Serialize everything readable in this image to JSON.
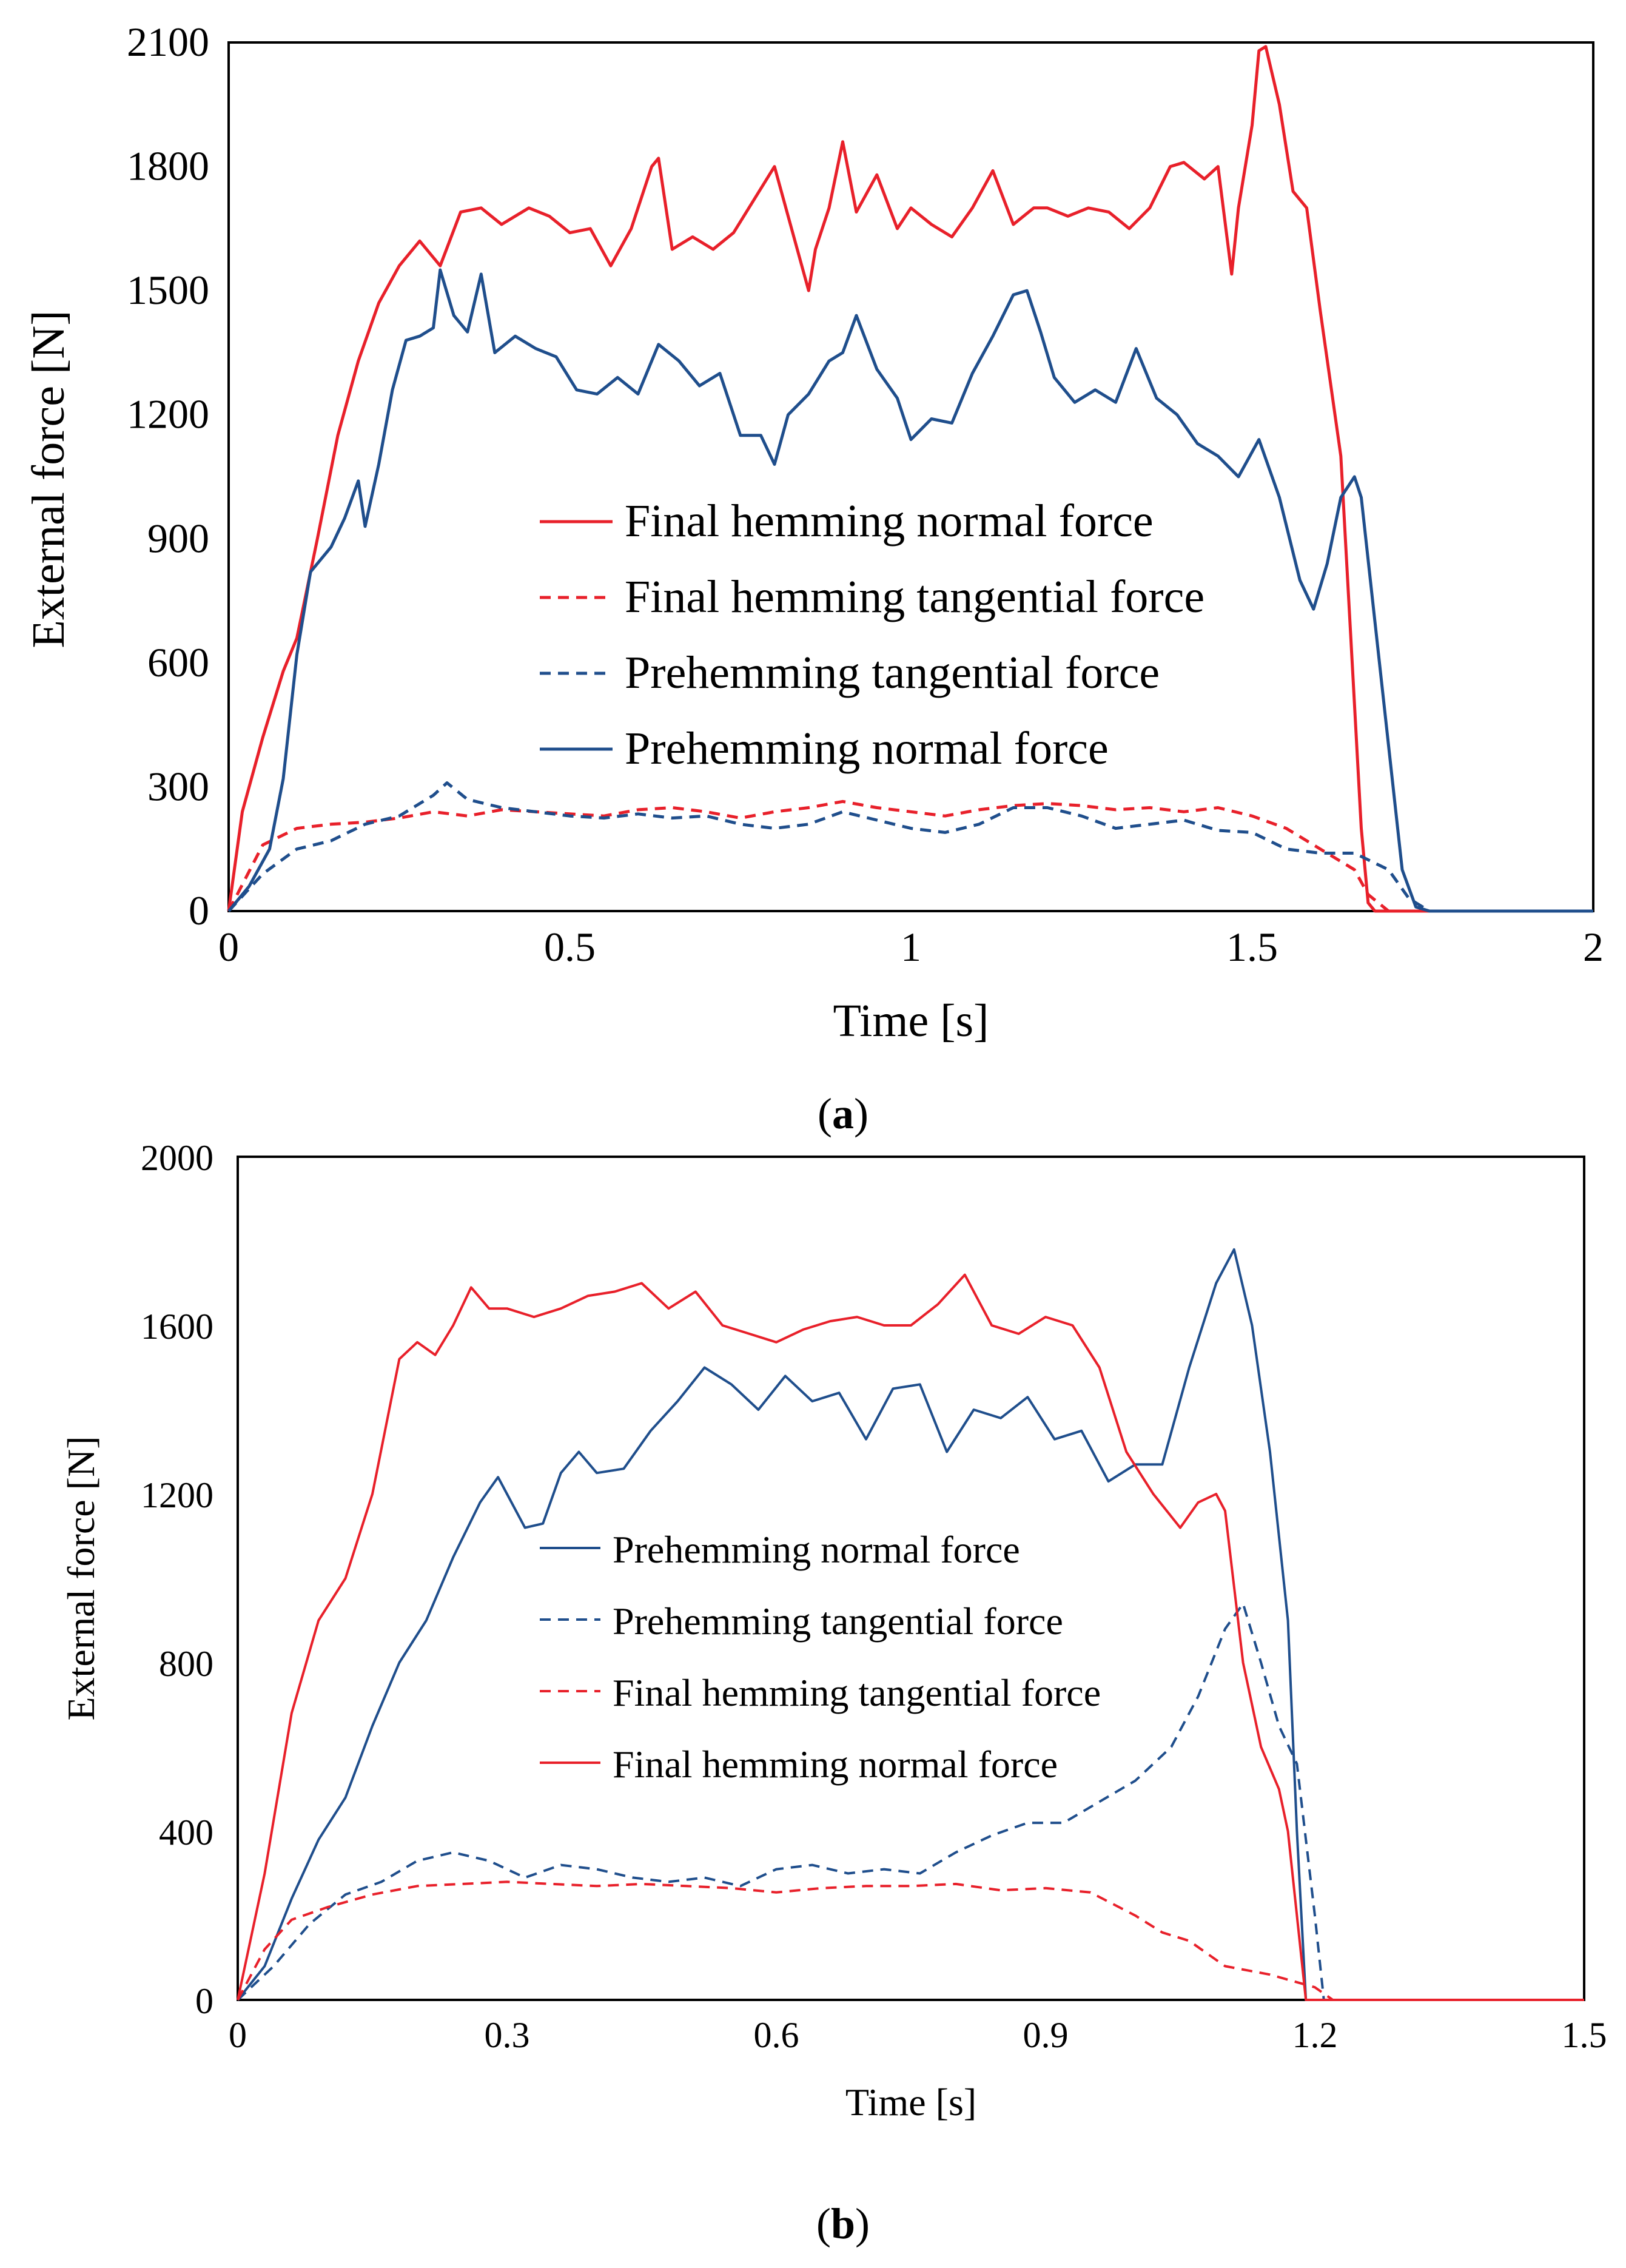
{
  "colors": {
    "red": "#e8202a",
    "blue": "#1f4e8c",
    "axis": "#000000"
  },
  "chart_data": [
    {
      "id": "a",
      "type": "line",
      "caption_open": "(",
      "caption_letter": "a",
      "caption_close": ")",
      "xlabel": "Time [s]",
      "ylabel": "External force [N]",
      "xlim": [
        0,
        2
      ],
      "ylim": [
        0,
        2100
      ],
      "xticks": [
        0,
        0.5,
        1,
        1.5,
        2
      ],
      "xtick_labels": [
        "0",
        "0.5",
        "1",
        "1.5",
        "2"
      ],
      "yticks": [
        0,
        300,
        600,
        900,
        1200,
        1500,
        1800,
        2100
      ],
      "ytick_labels": [
        "0",
        "300",
        "600",
        "900",
        "1200",
        "1500",
        "1800",
        "2100"
      ],
      "legend": [
        "Final hemming normal force",
        "Final hemming tangential force",
        "Prehemming tangential force",
        "Prehemming normal force"
      ],
      "series": [
        {
          "name": "Final hemming normal force",
          "color": "red",
          "dash": false,
          "x": [
            0,
            0.02,
            0.05,
            0.08,
            0.1,
            0.13,
            0.16,
            0.19,
            0.22,
            0.25,
            0.28,
            0.31,
            0.34,
            0.37,
            0.4,
            0.44,
            0.47,
            0.5,
            0.53,
            0.56,
            0.59,
            0.6,
            0.62,
            0.63,
            0.65,
            0.68,
            0.71,
            0.74,
            0.77,
            0.8,
            0.82,
            0.85,
            0.86,
            0.88,
            0.9,
            0.92,
            0.95,
            0.98,
            1.0,
            1.03,
            1.06,
            1.09,
            1.12,
            1.15,
            1.18,
            1.2,
            1.23,
            1.26,
            1.29,
            1.32,
            1.35,
            1.38,
            1.4,
            1.43,
            1.45,
            1.47,
            1.48,
            1.5,
            1.51,
            1.52,
            1.54,
            1.56,
            1.58,
            1.6,
            1.63,
            1.65,
            1.66,
            1.67,
            1.68,
            1.7,
            2.0
          ],
          "y": [
            0,
            240,
            420,
            580,
            660,
            900,
            1150,
            1330,
            1470,
            1560,
            1620,
            1560,
            1690,
            1700,
            1660,
            1700,
            1680,
            1640,
            1650,
            1560,
            1650,
            1700,
            1800,
            1820,
            1600,
            1630,
            1600,
            1640,
            1720,
            1800,
            1680,
            1500,
            1600,
            1700,
            1860,
            1690,
            1780,
            1650,
            1700,
            1660,
            1630,
            1700,
            1790,
            1660,
            1700,
            1700,
            1680,
            1700,
            1690,
            1650,
            1700,
            1800,
            1810,
            1770,
            1800,
            1540,
            1700,
            1900,
            2080,
            2090,
            1950,
            1740,
            1700,
            1450,
            1100,
            500,
            200,
            20,
            0,
            0,
            0
          ]
        },
        {
          "name": "Final hemming tangential force",
          "color": "red",
          "dash": true,
          "x": [
            0,
            0.05,
            0.1,
            0.15,
            0.2,
            0.25,
            0.3,
            0.35,
            0.4,
            0.45,
            0.5,
            0.55,
            0.6,
            0.65,
            0.7,
            0.75,
            0.8,
            0.85,
            0.9,
            0.95,
            1.0,
            1.05,
            1.1,
            1.15,
            1.2,
            1.25,
            1.3,
            1.35,
            1.4,
            1.45,
            1.5,
            1.55,
            1.6,
            1.65,
            1.67,
            1.7,
            2.0
          ],
          "y": [
            0,
            160,
            200,
            210,
            215,
            225,
            240,
            230,
            245,
            240,
            235,
            230,
            245,
            250,
            240,
            225,
            240,
            250,
            265,
            250,
            240,
            230,
            245,
            255,
            260,
            255,
            245,
            250,
            240,
            250,
            230,
            200,
            150,
            100,
            40,
            0,
            0
          ]
        },
        {
          "name": "Prehemming tangential force",
          "color": "blue",
          "dash": true,
          "x": [
            0,
            0.05,
            0.1,
            0.15,
            0.2,
            0.25,
            0.3,
            0.32,
            0.35,
            0.4,
            0.45,
            0.5,
            0.55,
            0.6,
            0.65,
            0.7,
            0.75,
            0.8,
            0.85,
            0.9,
            0.95,
            1.0,
            1.05,
            1.1,
            1.15,
            1.2,
            1.25,
            1.3,
            1.35,
            1.4,
            1.45,
            1.5,
            1.55,
            1.6,
            1.65,
            1.7,
            1.73,
            1.76,
            2.0
          ],
          "y": [
            0,
            90,
            150,
            170,
            210,
            230,
            280,
            310,
            270,
            250,
            240,
            230,
            225,
            235,
            225,
            230,
            210,
            200,
            210,
            240,
            220,
            200,
            190,
            210,
            250,
            250,
            230,
            200,
            210,
            220,
            195,
            190,
            150,
            140,
            140,
            100,
            30,
            0,
            0
          ]
        },
        {
          "name": "Prehemming normal force",
          "color": "blue",
          "dash": false,
          "x": [
            0,
            0.03,
            0.06,
            0.08,
            0.1,
            0.12,
            0.15,
            0.17,
            0.19,
            0.2,
            0.22,
            0.24,
            0.26,
            0.28,
            0.3,
            0.31,
            0.33,
            0.35,
            0.37,
            0.39,
            0.42,
            0.45,
            0.48,
            0.51,
            0.54,
            0.57,
            0.6,
            0.63,
            0.66,
            0.69,
            0.72,
            0.75,
            0.78,
            0.8,
            0.82,
            0.85,
            0.88,
            0.9,
            0.92,
            0.95,
            0.98,
            1.0,
            1.03,
            1.06,
            1.09,
            1.12,
            1.15,
            1.17,
            1.19,
            1.21,
            1.24,
            1.27,
            1.3,
            1.33,
            1.36,
            1.39,
            1.42,
            1.45,
            1.48,
            1.51,
            1.54,
            1.57,
            1.59,
            1.61,
            1.63,
            1.65,
            1.66,
            1.68,
            1.7,
            1.72,
            1.74,
            1.76,
            2.0
          ],
          "y": [
            0,
            60,
            150,
            320,
            620,
            820,
            880,
            950,
            1040,
            930,
            1080,
            1260,
            1380,
            1390,
            1410,
            1550,
            1440,
            1400,
            1540,
            1350,
            1390,
            1360,
            1340,
            1260,
            1250,
            1290,
            1250,
            1370,
            1330,
            1270,
            1300,
            1150,
            1150,
            1080,
            1200,
            1250,
            1330,
            1350,
            1440,
            1310,
            1240,
            1140,
            1190,
            1180,
            1300,
            1390,
            1490,
            1500,
            1400,
            1290,
            1230,
            1260,
            1230,
            1360,
            1240,
            1200,
            1130,
            1100,
            1050,
            1140,
            1000,
            800,
            730,
            840,
            1000,
            1050,
            1000,
            700,
            400,
            100,
            10,
            0,
            0
          ]
        }
      ]
    },
    {
      "id": "b",
      "type": "line",
      "caption_open": "(",
      "caption_letter": "b",
      "caption_close": ")",
      "xlabel": "Time [s]",
      "ylabel": "External force [N]",
      "xlim": [
        0,
        1.5
      ],
      "ylim": [
        0,
        2000
      ],
      "xticks": [
        0,
        0.3,
        0.6,
        0.9,
        1.2,
        1.5
      ],
      "xtick_labels": [
        "0",
        "0.3",
        "0.6",
        "0.9",
        "1.2",
        "1.5"
      ],
      "yticks": [
        0,
        400,
        800,
        1200,
        1600,
        2000
      ],
      "ytick_labels": [
        "0",
        "400",
        "800",
        "1200",
        "1600",
        "2000"
      ],
      "legend": [
        "Prehemming normal force",
        "Prehemming tangential force",
        "Final hemming tangential force",
        "Final hemming normal force"
      ],
      "series": [
        {
          "name": "Prehemming normal force",
          "color": "blue",
          "dash": false,
          "x": [
            0,
            0.03,
            0.06,
            0.09,
            0.12,
            0.15,
            0.18,
            0.21,
            0.24,
            0.27,
            0.29,
            0.3,
            0.32,
            0.34,
            0.36,
            0.38,
            0.4,
            0.43,
            0.46,
            0.49,
            0.52,
            0.55,
            0.58,
            0.61,
            0.64,
            0.67,
            0.7,
            0.73,
            0.76,
            0.79,
            0.82,
            0.85,
            0.88,
            0.91,
            0.94,
            0.97,
            1.0,
            1.03,
            1.06,
            1.09,
            1.11,
            1.13,
            1.15,
            1.17,
            1.18,
            1.19,
            1.5
          ],
          "y": [
            0,
            80,
            240,
            380,
            480,
            650,
            800,
            900,
            1050,
            1180,
            1240,
            1200,
            1120,
            1130,
            1250,
            1300,
            1250,
            1260,
            1350,
            1420,
            1500,
            1460,
            1400,
            1480,
            1420,
            1440,
            1330,
            1450,
            1460,
            1300,
            1400,
            1380,
            1430,
            1330,
            1350,
            1230,
            1270,
            1270,
            1500,
            1700,
            1780,
            1600,
            1300,
            900,
            400,
            0,
            0
          ]
        },
        {
          "name": "Prehemming tangential force",
          "color": "blue",
          "dash": true,
          "x": [
            0,
            0.04,
            0.08,
            0.12,
            0.16,
            0.2,
            0.24,
            0.28,
            0.32,
            0.36,
            0.4,
            0.44,
            0.48,
            0.52,
            0.56,
            0.6,
            0.64,
            0.68,
            0.72,
            0.76,
            0.8,
            0.84,
            0.88,
            0.92,
            0.96,
            1.0,
            1.04,
            1.07,
            1.1,
            1.12,
            1.14,
            1.16,
            1.18,
            1.2,
            1.21,
            1.5
          ],
          "y": [
            0,
            80,
            180,
            250,
            280,
            330,
            350,
            330,
            290,
            320,
            310,
            290,
            280,
            290,
            270,
            310,
            320,
            300,
            310,
            300,
            350,
            390,
            420,
            420,
            470,
            520,
            600,
            720,
            880,
            940,
            800,
            650,
            560,
            200,
            0,
            0
          ]
        },
        {
          "name": "Final hemming tangential force",
          "color": "red",
          "dash": true,
          "x": [
            0,
            0.03,
            0.06,
            0.1,
            0.15,
            0.2,
            0.25,
            0.3,
            0.35,
            0.4,
            0.45,
            0.5,
            0.55,
            0.6,
            0.65,
            0.7,
            0.75,
            0.8,
            0.85,
            0.9,
            0.95,
            1.0,
            1.03,
            1.06,
            1.1,
            1.15,
            1.2,
            1.22,
            1.5
          ],
          "y": [
            0,
            120,
            190,
            220,
            250,
            270,
            275,
            280,
            275,
            270,
            275,
            270,
            265,
            255,
            265,
            270,
            270,
            275,
            260,
            265,
            255,
            200,
            160,
            140,
            80,
            60,
            30,
            0,
            0
          ]
        },
        {
          "name": "Final hemming normal force",
          "color": "red",
          "dash": false,
          "x": [
            0,
            0.03,
            0.06,
            0.09,
            0.12,
            0.15,
            0.18,
            0.2,
            0.22,
            0.24,
            0.26,
            0.28,
            0.3,
            0.33,
            0.36,
            0.39,
            0.42,
            0.45,
            0.48,
            0.51,
            0.54,
            0.57,
            0.6,
            0.63,
            0.66,
            0.69,
            0.72,
            0.75,
            0.78,
            0.81,
            0.84,
            0.87,
            0.9,
            0.93,
            0.96,
            0.99,
            1.02,
            1.05,
            1.07,
            1.09,
            1.1,
            1.12,
            1.14,
            1.16,
            1.17,
            1.18,
            1.19,
            1.5
          ],
          "y": [
            0,
            300,
            680,
            900,
            1000,
            1200,
            1520,
            1560,
            1530,
            1600,
            1690,
            1640,
            1640,
            1620,
            1640,
            1670,
            1680,
            1700,
            1640,
            1680,
            1600,
            1580,
            1560,
            1590,
            1610,
            1620,
            1600,
            1600,
            1650,
            1720,
            1600,
            1580,
            1620,
            1600,
            1500,
            1300,
            1200,
            1120,
            1180,
            1200,
            1160,
            800,
            600,
            500,
            400,
            200,
            0,
            0
          ]
        }
      ]
    }
  ]
}
